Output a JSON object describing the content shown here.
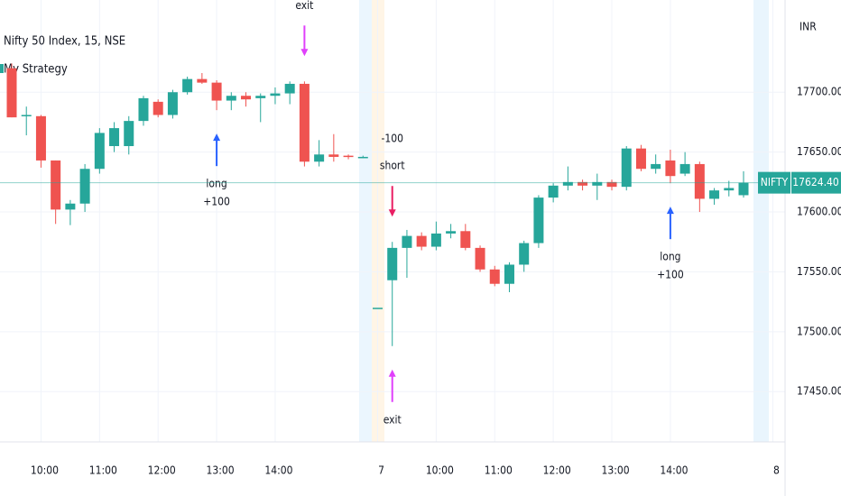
{
  "chart_data": {
    "type": "candlestick",
    "title": "Nifty 50 Index, 15, NSE",
    "legend": "My Strategy",
    "y_axis_label": "INR",
    "up_color": "#26a69a",
    "down_color": "#ef5350",
    "grid": true,
    "categories": [
      null,
      null,
      "10:00",
      null,
      null,
      null,
      "11:00",
      null,
      null,
      null,
      "12:00",
      null,
      null,
      null,
      "13:00",
      null,
      null,
      null,
      "14:00",
      null,
      null,
      null,
      null,
      null,
      null,
      "7",
      null,
      null,
      null,
      "10:00",
      null,
      null,
      null,
      "11:00",
      null,
      null,
      null,
      "12:00",
      null,
      null,
      null,
      "13:00",
      null,
      null,
      null,
      "14:00",
      null,
      null,
      null,
      null,
      null,
      null,
      "8"
    ],
    "open": [
      17720,
      17680,
      17680,
      17643,
      17602,
      17607,
      17636,
      17655,
      17655,
      17676,
      17692,
      17681,
      17700,
      17711,
      17708,
      17693,
      17697,
      17695,
      17697,
      17699,
      17707,
      17642,
      17648,
      17647,
      17646,
      17520,
      17543,
      17570,
      17580,
      17571,
      17582,
      17584,
      17570,
      17552,
      17540,
      17556,
      17574,
      17612,
      17622,
      17625,
      17622,
      17625,
      17621,
      17653,
      17636,
      17643,
      17632,
      17640,
      17611,
      17618,
      17614,
      null,
      null
    ],
    "high": [
      17724,
      17688,
      17681,
      17643,
      17610,
      17640,
      17670,
      17675,
      17680,
      17697,
      17694,
      17702,
      17713,
      17716,
      17710,
      17700,
      17700,
      17699,
      17704,
      17709,
      17709,
      17660,
      17665,
      17648,
      17647,
      17520,
      17575,
      17585,
      17583,
      17592,
      17590,
      17590,
      17572,
      17555,
      17558,
      17576,
      17614,
      17624,
      17638,
      17627,
      17632,
      17627,
      17655,
      17656,
      17648,
      17652,
      17650,
      17642,
      17620,
      17626,
      17634,
      null,
      null
    ],
    "low": [
      17679,
      17664,
      17637,
      17590,
      17589,
      17600,
      17632,
      17650,
      17648,
      17672,
      17679,
      17678,
      17698,
      17707,
      17685,
      17685,
      17688,
      17675,
      17690,
      17690,
      17638,
      17638,
      17642,
      17644,
      17645,
      17520,
      17488,
      17545,
      17568,
      17568,
      17578,
      17568,
      17550,
      17538,
      17533,
      17550,
      17570,
      17608,
      17618,
      17618,
      17610,
      17618,
      17618,
      17634,
      17632,
      17624,
      17630,
      17600,
      17606,
      17613,
      17612,
      null,
      null
    ],
    "close": [
      17679,
      17681,
      17643,
      17602,
      17607,
      17636,
      17666,
      17670,
      17676,
      17695,
      17681,
      17700,
      17711,
      17708,
      17693,
      17697,
      17694,
      17697,
      17699,
      17707,
      17642,
      17648,
      17646,
      17646,
      17646,
      17520,
      17570,
      17580,
      17571,
      17582,
      17584,
      17570,
      17552,
      17540,
      17556,
      17574,
      17612,
      17622,
      17625,
      17622,
      17625,
      17621,
      17653,
      17636,
      17640,
      17630,
      17640,
      17611,
      17618,
      17620,
      17624.4,
      null,
      null
    ],
    "ylim": [
      17408,
      17777
    ],
    "yticks": [
      {
        "value": 17450,
        "label": "17450.00"
      },
      {
        "value": 17500,
        "label": "17500.00"
      },
      {
        "value": 17550,
        "label": "17550.00"
      },
      {
        "value": 17600,
        "label": "17600.00"
      },
      {
        "value": 17650,
        "label": "17650.00"
      },
      {
        "value": 17700,
        "label": "17700.00"
      }
    ],
    "last_price": {
      "name": "NIFTY",
      "value": 17624.4,
      "label": "17624.40"
    },
    "signals": [
      {
        "bar": 20,
        "position": "above",
        "color": "#e040fb",
        "text": [
          "exit"
        ]
      },
      {
        "bar": 14,
        "position": "below",
        "color": "#2962ff",
        "text": [
          "long",
          "+100"
        ]
      },
      {
        "bar": 26,
        "position": "above",
        "color": "#e91e63",
        "text": [
          "-100",
          "short"
        ]
      },
      {
        "bar": 26,
        "position": "below",
        "color": "#e040fb",
        "text": [
          "exit"
        ]
      },
      {
        "bar": 45,
        "position": "below",
        "color": "#2962ff",
        "text": [
          "long",
          "+100"
        ]
      }
    ]
  }
}
